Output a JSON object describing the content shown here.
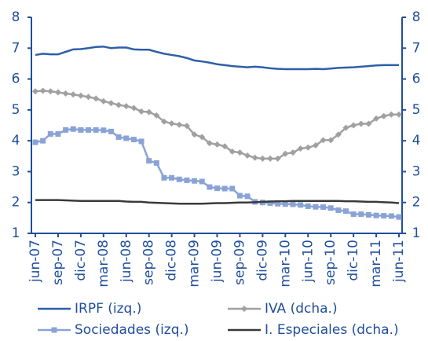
{
  "chart_data": {
    "type": "line",
    "categories": [
      "jun-07",
      null,
      null,
      "sep-07",
      null,
      null,
      "dic-07",
      null,
      null,
      "mar-08",
      null,
      null,
      "jun-08",
      null,
      null,
      "sep-08",
      null,
      null,
      "dic-08",
      null,
      null,
      "mar-09",
      null,
      null,
      "jun-09",
      null,
      null,
      "sep-09",
      null,
      null,
      "dic-09",
      null,
      null,
      "mar-10",
      null,
      null,
      "jun-10",
      null,
      null,
      "sep-10",
      null,
      null,
      "dic-10",
      null,
      null,
      "mar-11",
      null,
      null,
      "jun-11"
    ],
    "series": [
      {
        "name": "IRPF (izq.)",
        "color": "#2e5fa8",
        "marker": "none",
        "axis": "y",
        "values": [
          6.78,
          6.82,
          6.8,
          6.8,
          6.88,
          6.96,
          6.97,
          7.0,
          7.04,
          7.05,
          7.0,
          7.02,
          7.02,
          6.96,
          6.95,
          6.95,
          6.88,
          6.82,
          6.78,
          6.74,
          6.68,
          6.6,
          6.57,
          6.53,
          6.48,
          6.45,
          6.42,
          6.4,
          6.38,
          6.4,
          6.38,
          6.35,
          6.33,
          6.32,
          6.32,
          6.32,
          6.32,
          6.33,
          6.32,
          6.34,
          6.36,
          6.37,
          6.38,
          6.4,
          6.42,
          6.44,
          6.45,
          6.45,
          6.45
        ]
      },
      {
        "name": "IVA (dcha.)",
        "color": "#a0a0a0",
        "marker": "diamond",
        "axis": "y2",
        "values": [
          5.6,
          5.62,
          5.6,
          5.57,
          5.53,
          5.5,
          5.46,
          5.42,
          5.37,
          5.28,
          5.22,
          5.16,
          5.12,
          5.06,
          4.95,
          4.93,
          4.82,
          4.62,
          4.56,
          4.52,
          4.48,
          4.2,
          4.12,
          3.92,
          3.88,
          3.82,
          3.65,
          3.62,
          3.52,
          3.45,
          3.42,
          3.42,
          3.42,
          3.58,
          3.62,
          3.75,
          3.78,
          3.85,
          4.02,
          4.02,
          4.2,
          4.42,
          4.5,
          4.55,
          4.55,
          4.72,
          4.8,
          4.85,
          4.85
        ]
      },
      {
        "name": "Sociedades (izq.)",
        "color": "#8aa3d6",
        "marker": "square",
        "axis": "y",
        "values": [
          3.95,
          4.0,
          4.22,
          4.22,
          4.35,
          4.38,
          4.35,
          4.35,
          4.35,
          4.34,
          4.3,
          4.12,
          4.08,
          4.04,
          3.98,
          3.35,
          3.28,
          2.8,
          2.8,
          2.75,
          2.72,
          2.7,
          2.68,
          2.5,
          2.46,
          2.45,
          2.45,
          2.22,
          2.2,
          2.02,
          2.0,
          1.98,
          1.96,
          1.95,
          1.94,
          1.92,
          1.88,
          1.86,
          1.85,
          1.82,
          1.75,
          1.72,
          1.62,
          1.62,
          1.6,
          1.58,
          1.57,
          1.56,
          1.53
        ]
      },
      {
        "name": "I. Especiales (dcha.)",
        "color": "#3a3a3a",
        "marker": "none",
        "axis": "y2",
        "values": [
          2.08,
          2.08,
          2.08,
          2.08,
          2.07,
          2.06,
          2.05,
          2.05,
          2.05,
          2.05,
          2.05,
          2.05,
          2.03,
          2.02,
          2.02,
          2.0,
          1.99,
          1.98,
          1.97,
          1.96,
          1.96,
          1.96,
          1.96,
          1.97,
          1.98,
          1.98,
          1.99,
          2.0,
          2.0,
          2.01,
          2.02,
          2.03,
          2.04,
          2.04,
          2.05,
          2.05,
          2.05,
          2.05,
          2.05,
          2.05,
          2.05,
          2.04,
          2.04,
          2.03,
          2.02,
          2.02,
          2.01,
          2.0,
          1.98
        ]
      }
    ],
    "ylim": [
      1,
      8
    ],
    "yticks": [
      1,
      2,
      3,
      4,
      5,
      6,
      7,
      8
    ],
    "y2lim": [
      1,
      8
    ],
    "y2ticks": [
      1,
      2,
      3,
      4,
      5,
      6,
      7,
      8
    ],
    "axis_color": "#1f4e9c",
    "grid": false
  }
}
